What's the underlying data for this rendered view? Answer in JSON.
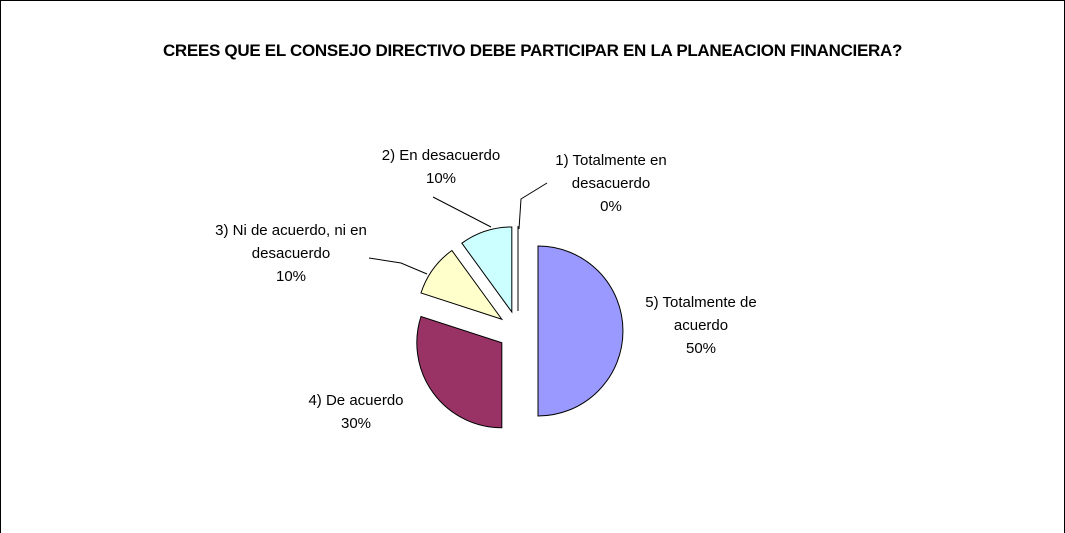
{
  "chart_data": {
    "type": "pie",
    "title": "CREES QUE EL CONSEJO DIRECTIVO DEBE PARTICIPAR EN LA PLANEACION FINANCIERA?",
    "categories": [
      "5) Totalmente de acuerdo",
      "4) De acuerdo",
      "3) Ni de acuerdo, ni en desacuerdo",
      "2) En desacuerdo",
      "1) Totalmente en desacuerdo"
    ],
    "values": [
      50,
      30,
      10,
      10,
      0
    ],
    "value_labels": [
      "50%",
      "30%",
      "10%",
      "10%",
      "0%"
    ],
    "colors": [
      "#9999ff",
      "#993366",
      "#ffffcc",
      "#ccffff",
      "#660066"
    ],
    "start_angle": 0,
    "direction": "clockwise",
    "exploded": true
  }
}
